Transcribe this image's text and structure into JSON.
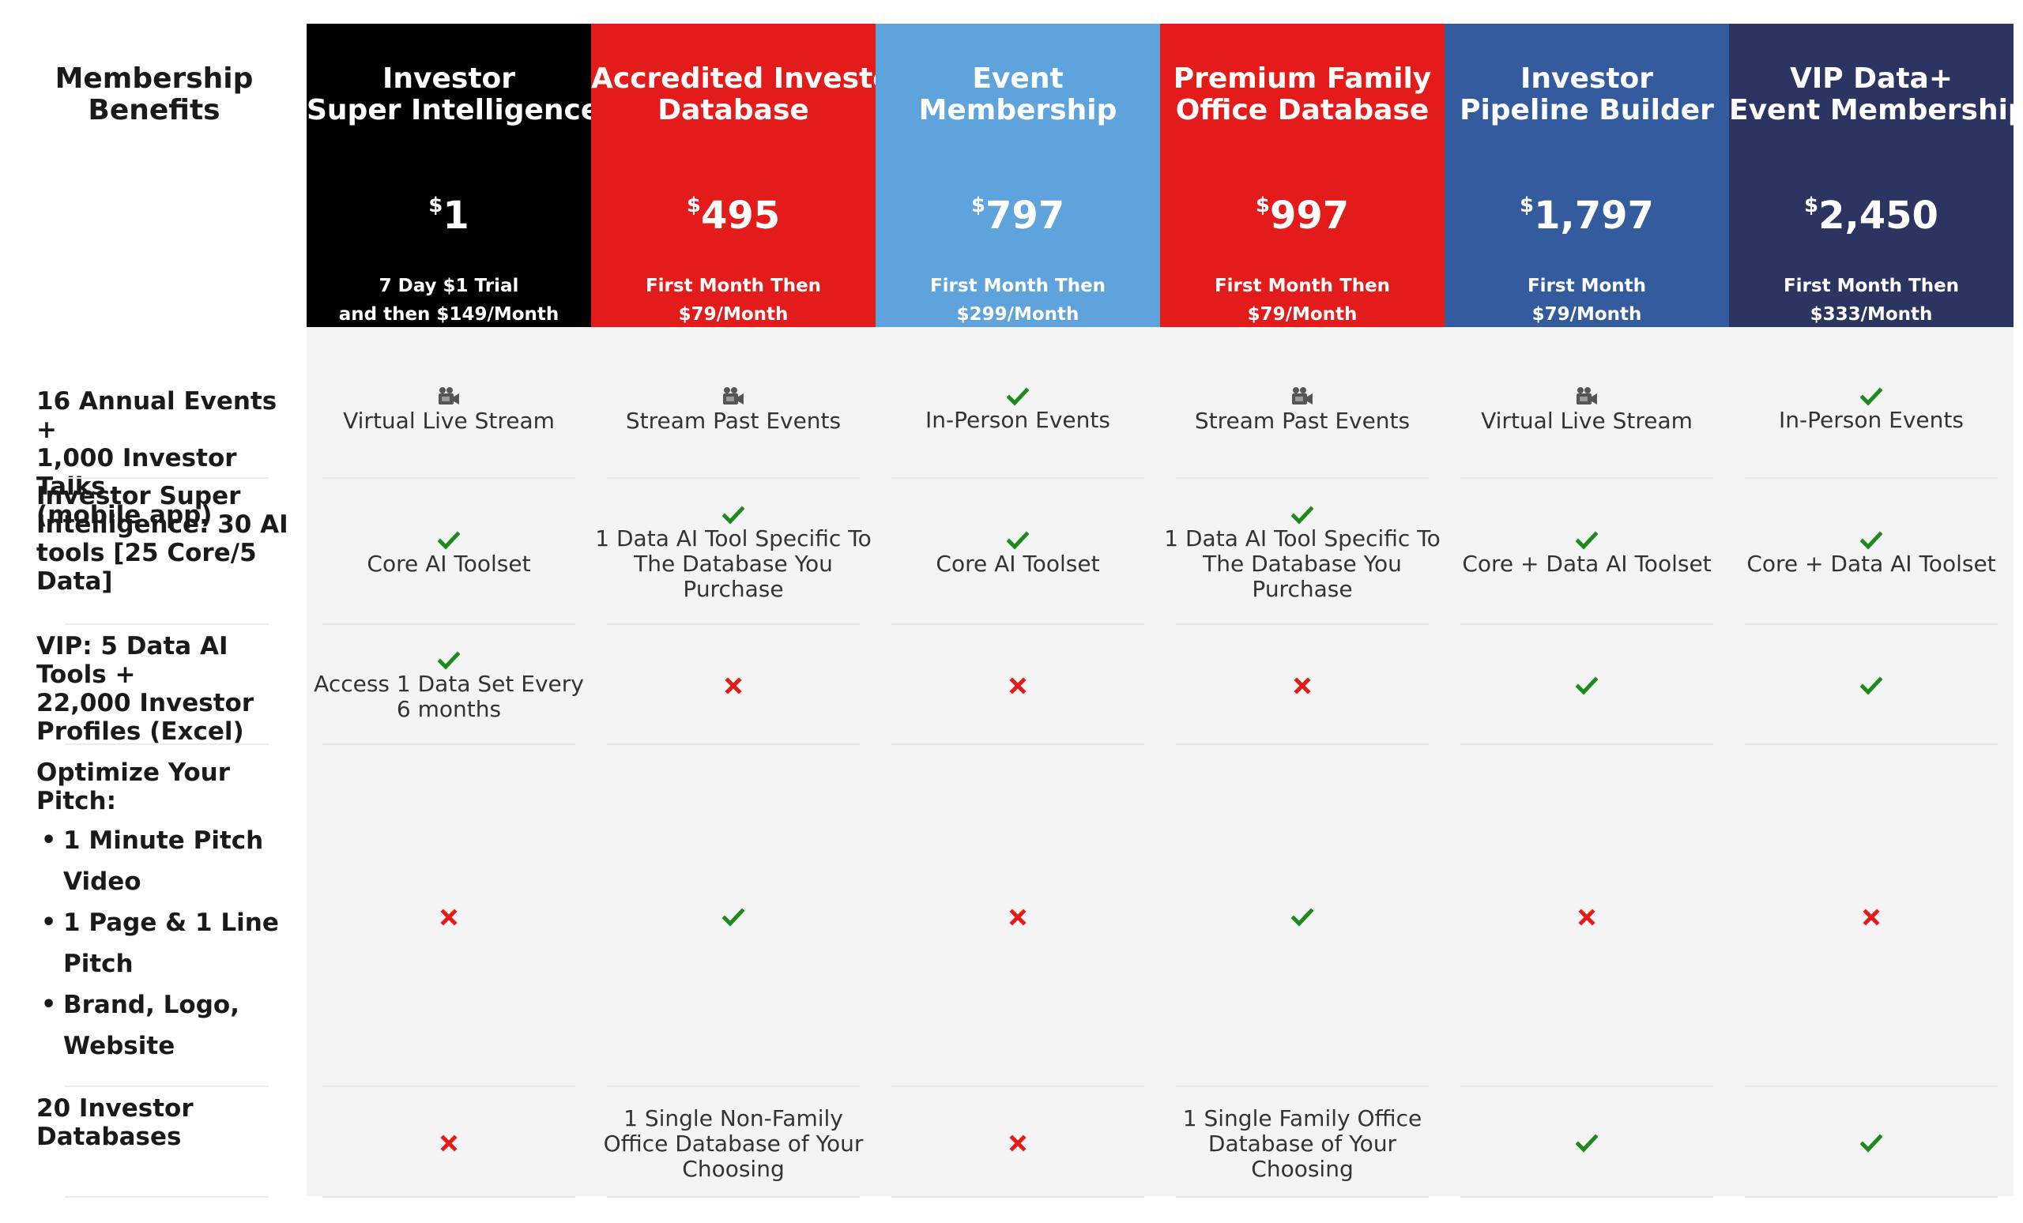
{
  "corner": {
    "line1": "Membership",
    "line2": "Benefits"
  },
  "icons": {
    "check": "check-icon",
    "cross": "cross-icon",
    "camera": "video-camera-icon"
  },
  "colors": {
    "check": "#1e8a1e",
    "cross": "#e31b1b"
  },
  "plans": [
    {
      "id": "investor-super-intelligence",
      "color": "#000000",
      "title": [
        "Investor",
        "Super Intelligence"
      ],
      "price_symbol": "$",
      "price": "1",
      "sub": [
        "7 Day $1 Trial",
        "and then $149/Month"
      ]
    },
    {
      "id": "accredited-investor-database",
      "color": "#e31b1b",
      "title": [
        "Accredited Investor",
        "Database"
      ],
      "price_symbol": "$",
      "price": "495",
      "sub": [
        "First Month Then",
        "$79/Month"
      ]
    },
    {
      "id": "event-membership",
      "color": "#5fa3dc",
      "title": [
        "Event",
        "Membership"
      ],
      "price_symbol": "$",
      "price": "797",
      "sub": [
        "First Month Then",
        "$299/Month"
      ]
    },
    {
      "id": "premium-family-office-database",
      "color": "#e31b1b",
      "title": [
        "Premium Family",
        "Office Database"
      ],
      "price_symbol": "$",
      "price": "997",
      "sub": [
        "First Month Then",
        "$79/Month"
      ]
    },
    {
      "id": "investor-pipeline-builder",
      "color": "#335b9e",
      "title": [
        "Investor",
        "Pipeline Builder"
      ],
      "price_symbol": "$",
      "price": "1,797",
      "sub": [
        "First Month",
        "$79/Month"
      ]
    },
    {
      "id": "vip-data-event-membership",
      "color": "#2c3561",
      "title": [
        "VIP Data+",
        "Event Membership"
      ],
      "price_symbol": "$",
      "price": "2,450",
      "sub": [
        "First Month Then",
        "$333/Month"
      ]
    }
  ],
  "rows": [
    {
      "label": [
        "16 Annual Events +",
        "1,000 Investor Talks",
        "(mobile app)"
      ],
      "cells": [
        {
          "icon": "camera",
          "text": [
            "Virtual Live Stream"
          ]
        },
        {
          "icon": "camera",
          "text": [
            "Stream Past Events"
          ]
        },
        {
          "icon": "check",
          "text": [
            "In-Person Events"
          ]
        },
        {
          "icon": "camera",
          "text": [
            "Stream Past Events"
          ]
        },
        {
          "icon": "camera",
          "text": [
            "Virtual Live Stream"
          ]
        },
        {
          "icon": "check",
          "text": [
            "In-Person Events"
          ]
        }
      ]
    },
    {
      "label": [
        "Investor Super",
        "Intelligence: 30 AI",
        "tools [25 Core/5",
        "Data]"
      ],
      "cells": [
        {
          "icon": "check",
          "text": [
            "Core AI Toolset"
          ]
        },
        {
          "icon": "check",
          "text": [
            "1 Data AI Tool Specific To",
            "The Database You",
            "Purchase"
          ]
        },
        {
          "icon": "check",
          "text": [
            "Core AI Toolset"
          ]
        },
        {
          "icon": "check",
          "text": [
            "1 Data AI Tool Specific To",
            "The Database You",
            "Purchase"
          ]
        },
        {
          "icon": "check",
          "text": [
            "Core + Data AI Toolset"
          ]
        },
        {
          "icon": "check",
          "text": [
            "Core + Data AI Toolset"
          ]
        }
      ]
    },
    {
      "label": [
        "VIP: 5 Data AI Tools +",
        "22,000 Investor",
        "Profiles (Excel)"
      ],
      "cells": [
        {
          "icon": "check",
          "text": [
            "Access 1 Data Set Every",
            "6 months"
          ]
        },
        {
          "icon": "cross",
          "text": []
        },
        {
          "icon": "cross",
          "text": []
        },
        {
          "icon": "cross",
          "text": []
        },
        {
          "icon": "check",
          "text": []
        },
        {
          "icon": "check",
          "text": []
        }
      ]
    },
    {
      "label": [
        "Optimize Your Pitch:"
      ],
      "bullets": [
        [
          "1 Minute Pitch",
          "Video"
        ],
        [
          "1 Page & 1 Line",
          "Pitch"
        ],
        [
          "Brand, Logo,",
          "Website"
        ]
      ],
      "cells": [
        {
          "icon": "cross",
          "text": []
        },
        {
          "icon": "check",
          "text": []
        },
        {
          "icon": "cross",
          "text": []
        },
        {
          "icon": "check",
          "text": []
        },
        {
          "icon": "cross",
          "text": []
        },
        {
          "icon": "cross",
          "text": []
        }
      ]
    },
    {
      "label": [
        "20 Investor",
        "Databases"
      ],
      "cells": [
        {
          "icon": "cross",
          "text": []
        },
        {
          "icon": "",
          "text": [
            "1 Single Non-Family",
            "Office Database of Your",
            "Choosing"
          ]
        },
        {
          "icon": "cross",
          "text": []
        },
        {
          "icon": "",
          "text": [
            "1 Single Family Office",
            "Database of Your",
            "Choosing"
          ]
        },
        {
          "icon": "check",
          "text": []
        },
        {
          "icon": "check",
          "text": []
        }
      ]
    }
  ]
}
